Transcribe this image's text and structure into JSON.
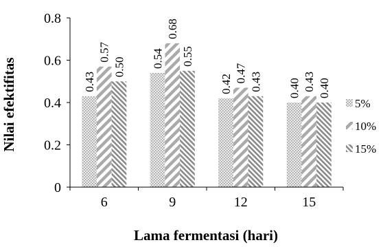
{
  "chart_data": {
    "type": "bar",
    "categories": [
      "6",
      "9",
      "12",
      "15"
    ],
    "series": [
      {
        "name": "5%",
        "values": [
          0.43,
          0.54,
          0.42,
          0.4
        ],
        "labels": [
          "0.43",
          "0.54",
          "0.42",
          "0.40"
        ]
      },
      {
        "name": "10%",
        "values": [
          0.57,
          0.68,
          0.47,
          0.43
        ],
        "labels": [
          "0.57",
          "0.68",
          "0.47",
          "0.43"
        ]
      },
      {
        "name": "15%",
        "values": [
          0.5,
          0.55,
          0.43,
          0.4
        ],
        "labels": [
          "0.50",
          "0.55",
          "0.43",
          "0.40"
        ]
      }
    ],
    "xlabel": "Lama fermentasi (hari)",
    "ylabel": "Nilai efektifitas",
    "ylim": [
      0,
      0.8
    ],
    "yticks": [
      "0",
      "0.2",
      "0.4",
      "0.6",
      "0.8"
    ],
    "legend_position": "right",
    "grid": false
  }
}
